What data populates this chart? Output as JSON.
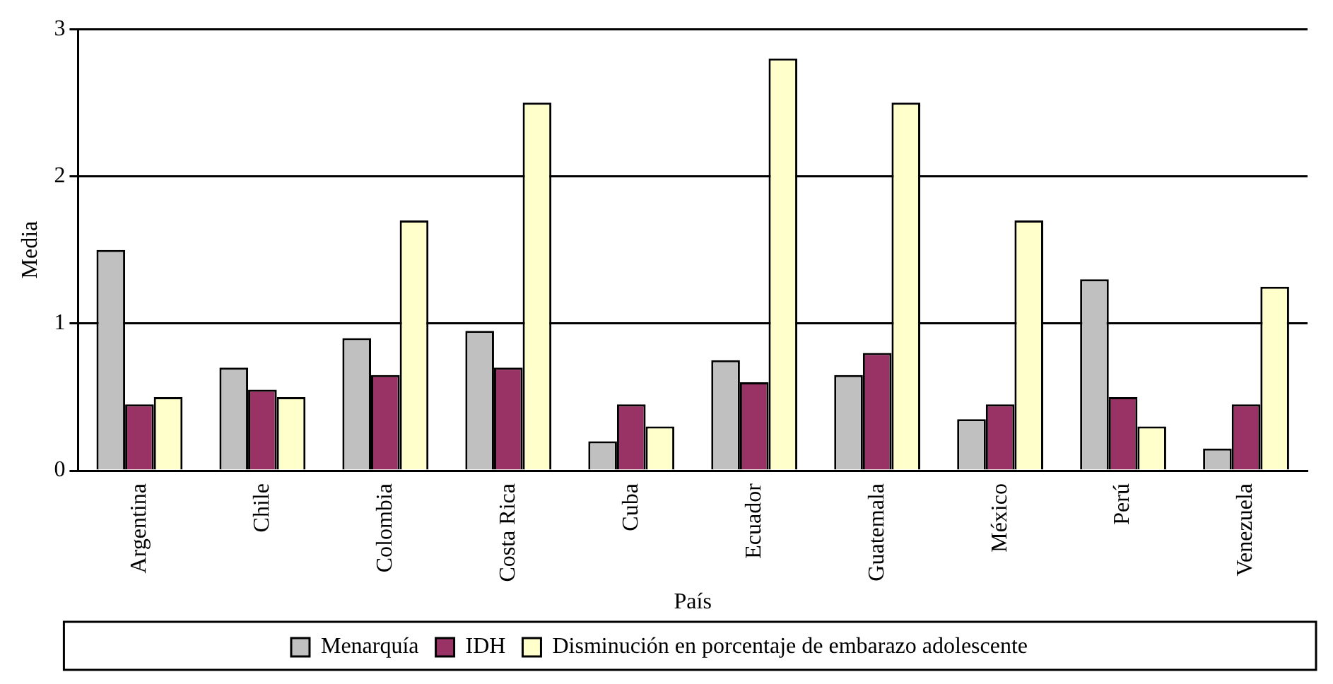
{
  "chart_data": {
    "type": "bar",
    "xlabel": "País",
    "ylabel": "Media",
    "categories": [
      "Argentina",
      "Chile",
      "Colombia",
      "Costa Rica",
      "Cuba",
      "Ecuador",
      "Guatemala",
      "México",
      "Perú",
      "Venezuela"
    ],
    "series": [
      {
        "name": "Menarquía",
        "color": "#c0c0c0",
        "values": [
          1.5,
          0.7,
          0.9,
          0.95,
          0.2,
          0.75,
          0.65,
          0.35,
          1.3,
          0.15
        ]
      },
      {
        "name": "IDH",
        "color": "#993366",
        "values": [
          0.45,
          0.55,
          0.65,
          0.7,
          0.45,
          0.6,
          0.8,
          0.45,
          0.5,
          0.45
        ]
      },
      {
        "name": "Disminución en porcentaje de embarazo adolescente",
        "color": "#ffffcc",
        "values": [
          0.5,
          0.5,
          1.7,
          2.5,
          0.3,
          2.8,
          2.5,
          1.7,
          0.3,
          1.25
        ]
      }
    ],
    "ylim": [
      0,
      3
    ],
    "yticks": [
      0,
      1,
      2,
      3
    ],
    "grid": "y",
    "legend": "bottom"
  }
}
